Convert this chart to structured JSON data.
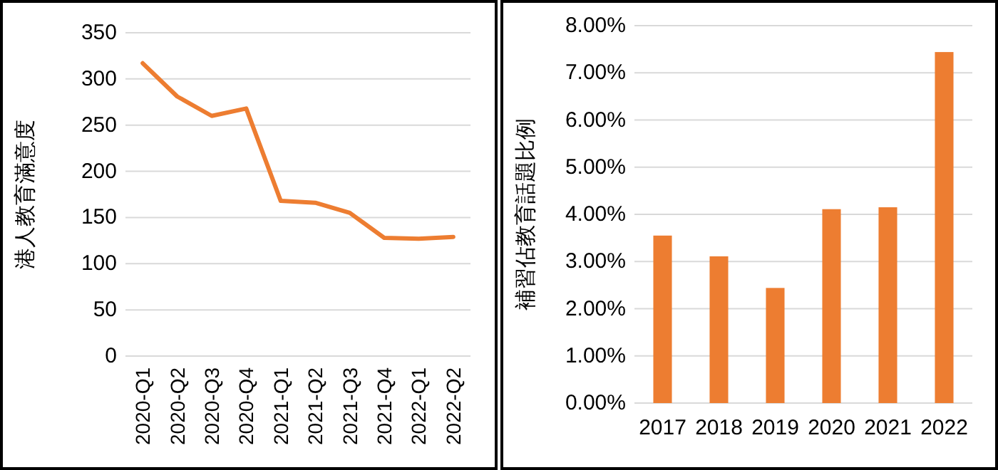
{
  "chart_data": [
    {
      "type": "line",
      "ylabel": "港人教育滿意度",
      "categories": [
        "2020-Q1",
        "2020-Q2",
        "2020-Q3",
        "2020-Q4",
        "2021-Q1",
        "2021-Q2",
        "2021-Q3",
        "2021-Q4",
        "2022-Q1",
        "2022-Q2"
      ],
      "series": [
        {
          "color": "#ed7d31",
          "values": [
            317,
            281,
            260,
            268,
            168,
            166,
            155,
            128,
            127,
            129
          ]
        }
      ],
      "ylim": [
        0,
        350
      ],
      "yticks": [
        0,
        50,
        100,
        150,
        200,
        250,
        300,
        350
      ],
      "grid": "y",
      "marker": "none",
      "line_style": "solid"
    },
    {
      "type": "bar",
      "ylabel": "補習佔教育話題比例",
      "categories": [
        "2017",
        "2018",
        "2019",
        "2020",
        "2021",
        "2022"
      ],
      "series": [
        {
          "color": "#ed7d31",
          "values": [
            3.55,
            3.11,
            2.44,
            4.11,
            4.15,
            7.44
          ]
        }
      ],
      "ylim": [
        0,
        8
      ],
      "yticks": [
        {
          "value": 0,
          "label": "0.00%"
        },
        {
          "value": 1,
          "label": "1.00%"
        },
        {
          "value": 2,
          "label": "2.00%"
        },
        {
          "value": 3,
          "label": "3.00%"
        },
        {
          "value": 4,
          "label": "4.00%"
        },
        {
          "value": 5,
          "label": "5.00%"
        },
        {
          "value": 6,
          "label": "6.00%"
        },
        {
          "value": 7,
          "label": "7.00%"
        },
        {
          "value": 8,
          "label": "8.00%"
        }
      ],
      "grid": "y"
    }
  ]
}
